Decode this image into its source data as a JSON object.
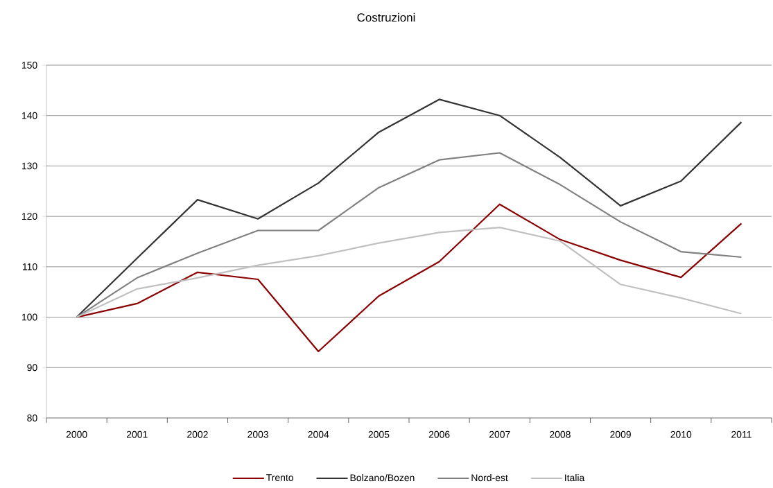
{
  "chart_data": {
    "type": "line",
    "title": "Costruzioni",
    "categories": [
      "2000",
      "2001",
      "2002",
      "2003",
      "2004",
      "2005",
      "2006",
      "2007",
      "2008",
      "2009",
      "2010",
      "2011"
    ],
    "series": [
      {
        "name": "Trento",
        "color": "#8b0000",
        "values": [
          100,
          102.7,
          108.9,
          107.5,
          93.2,
          104.2,
          111.0,
          122.4,
          115.4,
          111.3,
          107.9,
          118.6
        ]
      },
      {
        "name": "Bolzano/Bozen",
        "color": "#333333",
        "values": [
          100,
          111.7,
          123.3,
          119.5,
          126.6,
          136.7,
          143.2,
          140.0,
          131.7,
          122.1,
          127.0,
          138.7
        ]
      },
      {
        "name": "Nord-est",
        "color": "#808080",
        "values": [
          100,
          107.8,
          112.7,
          117.2,
          117.2,
          125.7,
          131.2,
          132.6,
          126.3,
          118.9,
          113.0,
          111.9
        ]
      },
      {
        "name": "Italia",
        "color": "#c0c0c0",
        "values": [
          100,
          105.6,
          107.8,
          110.3,
          112.2,
          114.7,
          116.8,
          117.8,
          115.1,
          106.5,
          103.8,
          100.7
        ]
      }
    ],
    "ylim": [
      80,
      150
    ],
    "yticks": [
      80,
      90,
      100,
      110,
      120,
      130,
      140,
      150
    ],
    "grid": "y",
    "legend": "bottom",
    "marker": "none",
    "line_style": "solid"
  }
}
